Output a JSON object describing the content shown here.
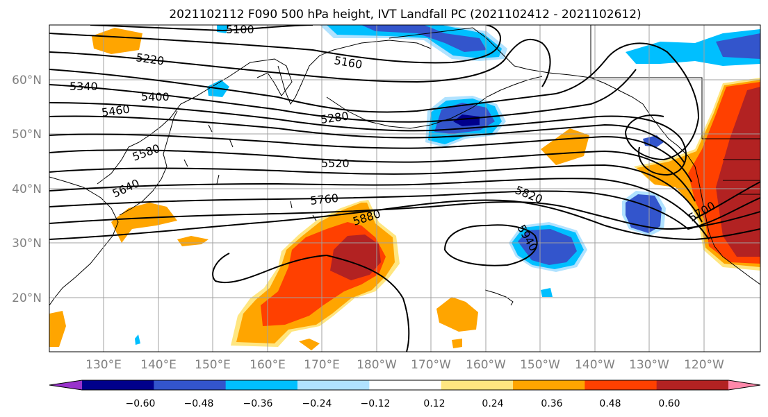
{
  "title": "2021102112 F090 500 hPa height, IVT Landfall PC (2021102412 - 2021102612)",
  "lat_labels": [
    "60°N",
    "50°N",
    "40°N",
    "30°N",
    "20°N"
  ],
  "lon_labels": [
    "130°E",
    "140°E",
    "150°E",
    "160°E",
    "170°E",
    "180°W",
    "170°W",
    "160°W",
    "150°W",
    "140°W",
    "130°W",
    "120°W"
  ],
  "map": {
    "lat_range": [
      10,
      70
    ],
    "lon_range": [
      120,
      251
    ],
    "gridlines": true,
    "label_color": "#808080"
  },
  "height_contour_labels": [
    "5100",
    "5160",
    "5220",
    "5280",
    "5340",
    "5400",
    "5460",
    "5520",
    "5580",
    "5640",
    "5700",
    "5760",
    "5820",
    "5880",
    "5940"
  ],
  "colorbar": {
    "ticks": [
      "−0.60",
      "−0.48",
      "−0.36",
      "−0.24",
      "−0.12",
      "0.12",
      "0.24",
      "0.36",
      "0.48",
      "0.60"
    ],
    "colors": [
      "#9933cc",
      "#00008b",
      "#3355cc",
      "#00bfff",
      "#b0e2ff",
      "#ffffff",
      "#ffe680",
      "#ffa500",
      "#ff4000",
      "#b22222",
      "#ff88aa"
    ],
    "extend": "both"
  }
}
